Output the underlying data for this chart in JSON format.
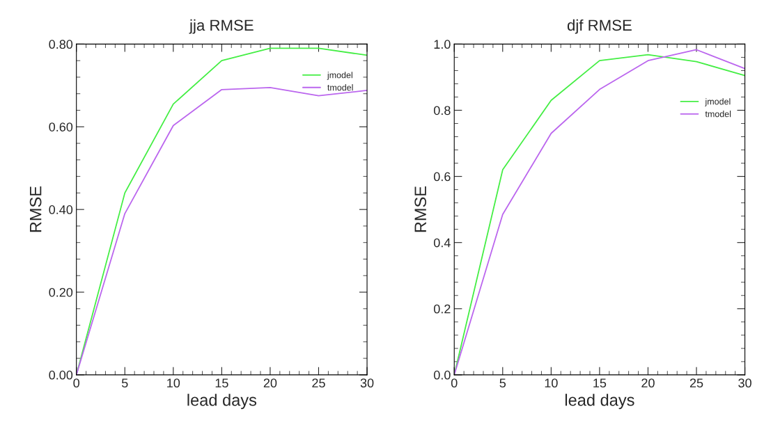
{
  "chart_data": [
    {
      "type": "line",
      "title": "jja RMSE",
      "xlabel": "lead days",
      "ylabel": "RMSE",
      "x": [
        0,
        5,
        10,
        15,
        20,
        25,
        30
      ],
      "series": [
        {
          "name": "jmodel",
          "color": "#44ee44",
          "values": [
            0,
            0.44,
            0.655,
            0.76,
            0.79,
            0.79,
            0.773
          ]
        },
        {
          "name": "tmodel",
          "color": "#bb66ee",
          "values": [
            0,
            0.39,
            0.603,
            0.69,
            0.695,
            0.675,
            0.688
          ]
        }
      ],
      "xlim": [
        0,
        30
      ],
      "xticks": [
        0,
        5,
        10,
        15,
        20,
        25,
        30
      ],
      "ylim": [
        0,
        0.8
      ],
      "yticks": [
        {
          "value": 0,
          "label": "0.00"
        },
        {
          "value": 0.2,
          "label": "0.20"
        },
        {
          "value": 0.4,
          "label": "0.40"
        },
        {
          "value": 0.6,
          "label": "0.60"
        },
        {
          "value": 0.8,
          "label": "0.80"
        }
      ],
      "grid": false,
      "legend": "top right",
      "marker": "none",
      "line_style": "solid"
    },
    {
      "type": "line",
      "title": "djf RMSE",
      "xlabel": "lead days",
      "ylabel": "RMSE",
      "x": [
        0,
        5,
        10,
        15,
        20,
        25,
        30
      ],
      "series": [
        {
          "name": "jmodel",
          "color": "#44ee44",
          "values": [
            0,
            0.62,
            0.83,
            0.95,
            0.968,
            0.947,
            0.905
          ]
        },
        {
          "name": "tmodel",
          "color": "#bb66ee",
          "values": [
            0,
            0.485,
            0.73,
            0.863,
            0.95,
            0.983,
            0.926
          ]
        }
      ],
      "xlim": [
        0,
        30
      ],
      "xticks": [
        0,
        5,
        10,
        15,
        20,
        25,
        30
      ],
      "ylim": [
        0,
        1.0
      ],
      "yticks": [
        {
          "value": 0,
          "label": "0.0"
        },
        {
          "value": 0.2,
          "label": "0.2"
        },
        {
          "value": 0.4,
          "label": "0.4"
        },
        {
          "value": 0.6,
          "label": "0.6"
        },
        {
          "value": 0.8,
          "label": "0.8"
        },
        {
          "value": 1.0,
          "label": "1.0"
        }
      ],
      "grid": false,
      "legend": "top right",
      "marker": "none",
      "line_style": "solid"
    }
  ]
}
